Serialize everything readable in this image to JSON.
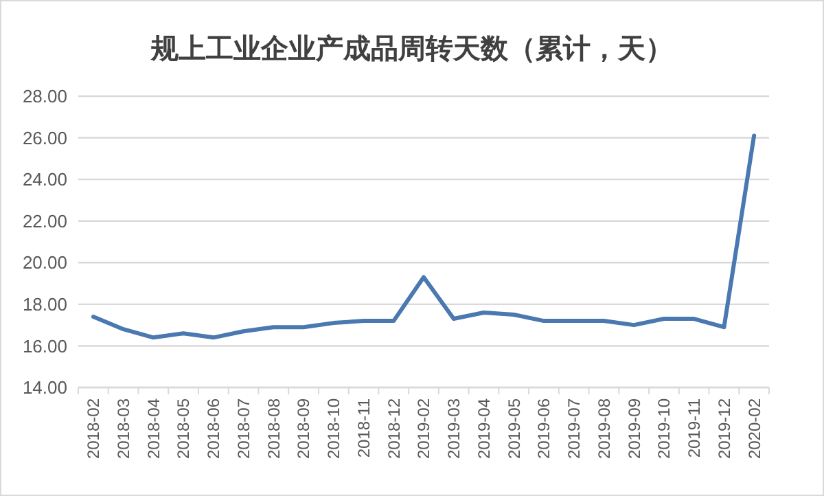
{
  "chart_data": {
    "type": "line",
    "title": "规上工业企业产成品周转天数（累计，天）",
    "categories": [
      "2018-02",
      "2018-03",
      "2018-04",
      "2018-05",
      "2018-06",
      "2018-07",
      "2018-08",
      "2018-09",
      "2018-10",
      "2018-11",
      "2018-12",
      "2019-02",
      "2019-03",
      "2019-04",
      "2019-05",
      "2019-06",
      "2019-07",
      "2019-08",
      "2019-09",
      "2019-10",
      "2019-11",
      "2019-12",
      "2020-02"
    ],
    "series": [
      {
        "color": "#4a78b0",
        "values": [
          17.4,
          16.8,
          16.4,
          16.6,
          16.4,
          16.7,
          16.9,
          16.9,
          17.1,
          17.2,
          17.2,
          19.3,
          17.3,
          17.6,
          17.5,
          17.2,
          17.2,
          17.2,
          17.0,
          17.3,
          17.3,
          16.9,
          26.1
        ]
      }
    ],
    "ylim": [
      14,
      28
    ],
    "yticks": [
      {
        "value": 14,
        "label": "14.00"
      },
      {
        "value": 16,
        "label": "16.00"
      },
      {
        "value": 18,
        "label": "18.00"
      },
      {
        "value": 20,
        "label": "20.00"
      },
      {
        "value": 22,
        "label": "22.00"
      },
      {
        "value": 24,
        "label": "24.00"
      },
      {
        "value": 26,
        "label": "26.00"
      },
      {
        "value": 28,
        "label": "28.00"
      }
    ],
    "grid": "y",
    "marker": "none",
    "line_style": "solid"
  }
}
